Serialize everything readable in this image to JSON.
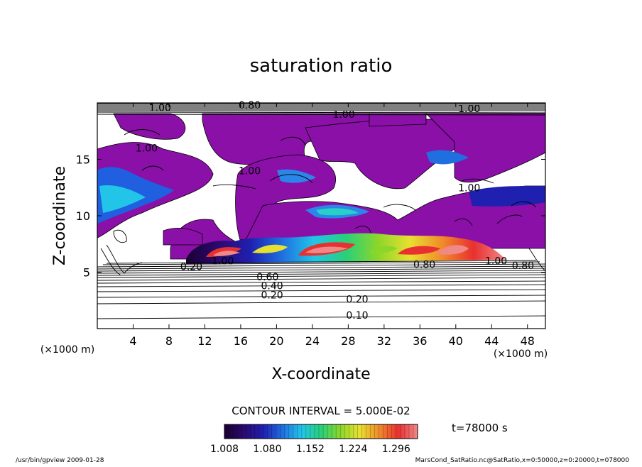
{
  "chart_data": {
    "type": "heatmap",
    "title": "saturation ratio",
    "xlabel": "X-coordinate",
    "ylabel": "Z-coordinate",
    "x_unit": "(×1000 m)",
    "y_unit": "(×1000 m)",
    "xlim": [
      0,
      50
    ],
    "ylim": [
      0,
      20
    ],
    "x_ticks": [
      4,
      8,
      12,
      16,
      20,
      24,
      28,
      32,
      36,
      40,
      44,
      48
    ],
    "y_ticks": [
      5,
      10,
      15
    ],
    "contour_interval_text": "CONTOUR INTERVAL = 5.000E-02",
    "time_text": "t=78000 s",
    "colorbar": {
      "min": 1.008,
      "max": 1.332,
      "tick_labels": [
        "1.008",
        "1.080",
        "1.152",
        "1.224",
        "1.296"
      ],
      "colors": [
        "#1a0033",
        "#2a0a6e",
        "#1f1fb0",
        "#1f6fe0",
        "#22c5e8",
        "#28d07a",
        "#8cd62a",
        "#e8e030",
        "#f08c2a",
        "#e83030",
        "#f08888"
      ]
    },
    "contour_labels": [
      {
        "text": "0.10",
        "x": 29.0,
        "y": 1.2
      },
      {
        "text": "0.20",
        "x": 29.0,
        "y": 2.6
      },
      {
        "text": "0.20",
        "x": 19.5,
        "y": 3.0
      },
      {
        "text": "0.40",
        "x": 19.5,
        "y": 3.8
      },
      {
        "text": "0.60",
        "x": 19.0,
        "y": 4.6
      },
      {
        "text": "0.20",
        "x": 10.5,
        "y": 5.5
      },
      {
        "text": "1.00",
        "x": 14.0,
        "y": 6.0
      },
      {
        "text": "0.80",
        "x": 36.5,
        "y": 5.7
      },
      {
        "text": "1.00",
        "x": 44.5,
        "y": 6.0
      },
      {
        "text": "0.80",
        "x": 47.5,
        "y": 5.6
      },
      {
        "text": "1.00",
        "x": 17.0,
        "y": 14.0
      },
      {
        "text": "1.00",
        "x": 5.5,
        "y": 16.0
      },
      {
        "text": "1.00",
        "x": 41.5,
        "y": 12.5
      },
      {
        "text": "1.00",
        "x": 27.5,
        "y": 19.0
      },
      {
        "text": "1.00",
        "x": 41.5,
        "y": 19.5
      },
      {
        "text": "0.80",
        "x": 17.0,
        "y": 19.8
      },
      {
        "text": "1.00",
        "x": 7.0,
        "y": 19.6
      }
    ]
  },
  "footer": {
    "left": "/usr/bin/gpview   2009-01-28",
    "right": "MarsCond_SatRatio.nc@SatRatio,x=0:50000,z=0:20000,t=078000"
  }
}
